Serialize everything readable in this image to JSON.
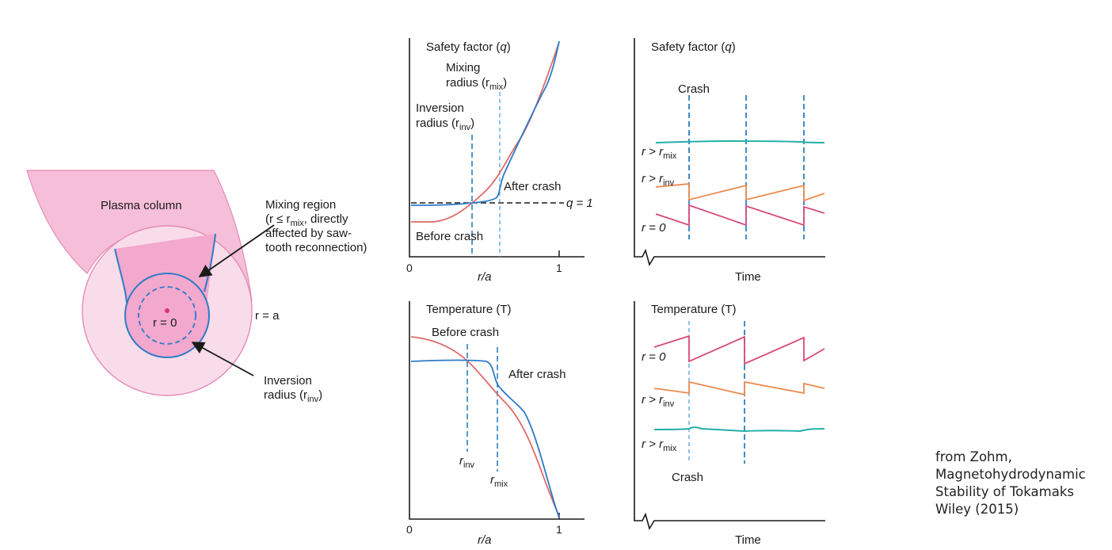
{
  "colors": {
    "plasma_outer": "#f6bfd9",
    "plasma_mid": "#f9dcea",
    "plasma_inner": "#f3a8cd",
    "plasma_edge": "#e58ab8",
    "blue": "#2e7bc6",
    "dashed_blue": "#2b7fc1",
    "red": "#e06a6a",
    "magenta": "#d94a7a",
    "orange": "#ec8a4e",
    "teal": "#23b0a8",
    "axis": "#1a1a1a"
  },
  "plasma": {
    "column_label": "Plasma column",
    "mixing_region": {
      "line1": "Mixing region",
      "line2_pre": "(r ≤ r",
      "line2_sub": "mix",
      "line2_post": ", directly",
      "line3": "affected by saw-",
      "line4": "tooth reconnection)"
    },
    "center_label": "r = 0",
    "edge_label": "r = a",
    "inversion": {
      "line1": "Inversion",
      "line2_pre": "radius (r",
      "line2_sub": "inv",
      "line2_post": ")"
    }
  },
  "q_profile": {
    "title_pre": "Safety factor (",
    "title_sym": "q",
    "title_post": ")",
    "mixing_label_1": "Mixing",
    "mixing_label_2_pre": "radius (r",
    "mixing_label_2_sub": "mix",
    "mixing_label_2_post": ")",
    "inversion_label_1": "Inversion",
    "inversion_label_2_pre": "radius (r",
    "inversion_label_2_sub": "inv",
    "inversion_label_2_post": ")",
    "after_crash": "After crash",
    "before_crash": "Before crash",
    "q_eq_1": "q = 1",
    "x_tick_0": "0",
    "x_tick_1": "1",
    "x_label": "r/a"
  },
  "q_time": {
    "title_pre": "Safety factor (",
    "title_sym": "q",
    "title_post": ")",
    "crash": "Crash",
    "r_mix": "r > r",
    "r_mix_sub": "mix",
    "r_inv": "r > r",
    "r_inv_sub": "inv",
    "r_zero": "r = 0",
    "x_label": "Time"
  },
  "t_profile": {
    "title": "Temperature (T)",
    "before_crash": "Before crash",
    "after_crash": "After crash",
    "r_inv": "r",
    "r_inv_sub": "inv",
    "r_mix": "r",
    "r_mix_sub": "mix",
    "x_tick_0": "0",
    "x_tick_1": "1",
    "x_label": "r/a"
  },
  "t_time": {
    "title": "Temperature (T)",
    "r_zero": "r = 0",
    "r_inv": "r > r",
    "r_inv_sub": "inv",
    "r_mix": "r > r",
    "r_mix_sub": "mix",
    "crash": "Crash",
    "x_label": "Time"
  },
  "citation": {
    "line1": "from Zohm,",
    "line2": "Magnetohydrodynamic",
    "line3": "Stability of Tokamaks",
    "line4": "Wiley (2015)"
  }
}
